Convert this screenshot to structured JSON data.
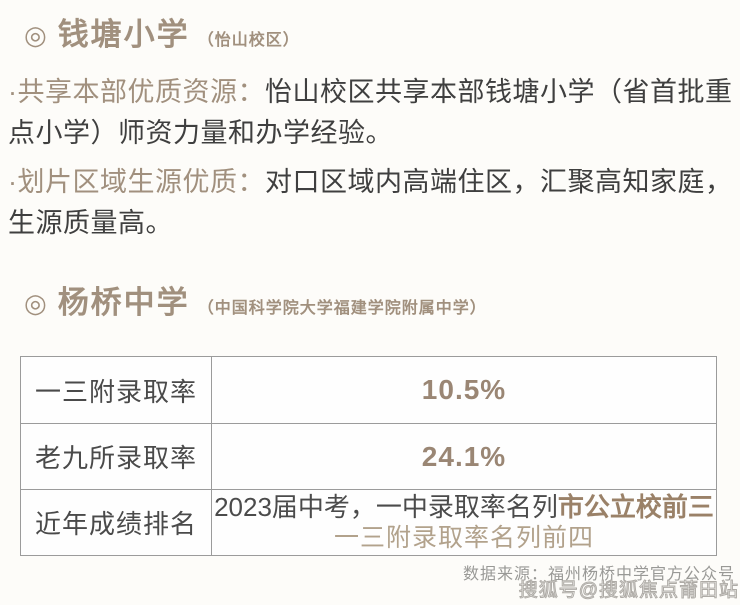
{
  "colors": {
    "background": "#fdfcf9",
    "accent_tan": "#a1907e",
    "value_brown": "#9a8674",
    "highlight_brown": "#9a8168",
    "light_tan": "#b2a28c",
    "body_text": "#3f3f3f",
    "table_border": "#9b9b9b",
    "muted_gray": "#999996"
  },
  "section_primary_school": {
    "marker": "◎",
    "title": "钱塘小学",
    "subtitle": "（怡山校区）",
    "paragraphs": [
      {
        "lead": "·共享本部优质资源：",
        "text": "怡山校区共享本部钱塘小学（省首批重点小学）师资力量和办学经验。"
      },
      {
        "lead": "·划片区域生源优质：",
        "text": "对口区域内高端住区，汇聚高知家庭，生源质量高。"
      }
    ]
  },
  "section_middle_school": {
    "marker": "◎",
    "title": "杨桥中学",
    "subtitle": "（中国科学院大学福建学院附属中学）",
    "table": {
      "rows": [
        {
          "label": "一三附录取率",
          "value": "10.5%"
        },
        {
          "label": "老九所录取率",
          "value": "24.1%"
        },
        {
          "label": "近年成绩排名",
          "line1_text": "2023届中考，一中录取率名列",
          "line1_highlight": "市公立校前三",
          "line2": "一三附录取率名列前四"
        }
      ]
    }
  },
  "footer": {
    "source": "数据来源：福州杨桥中学官方公众号",
    "watermark": "搜狐号@搜狐焦点莆田站"
  }
}
